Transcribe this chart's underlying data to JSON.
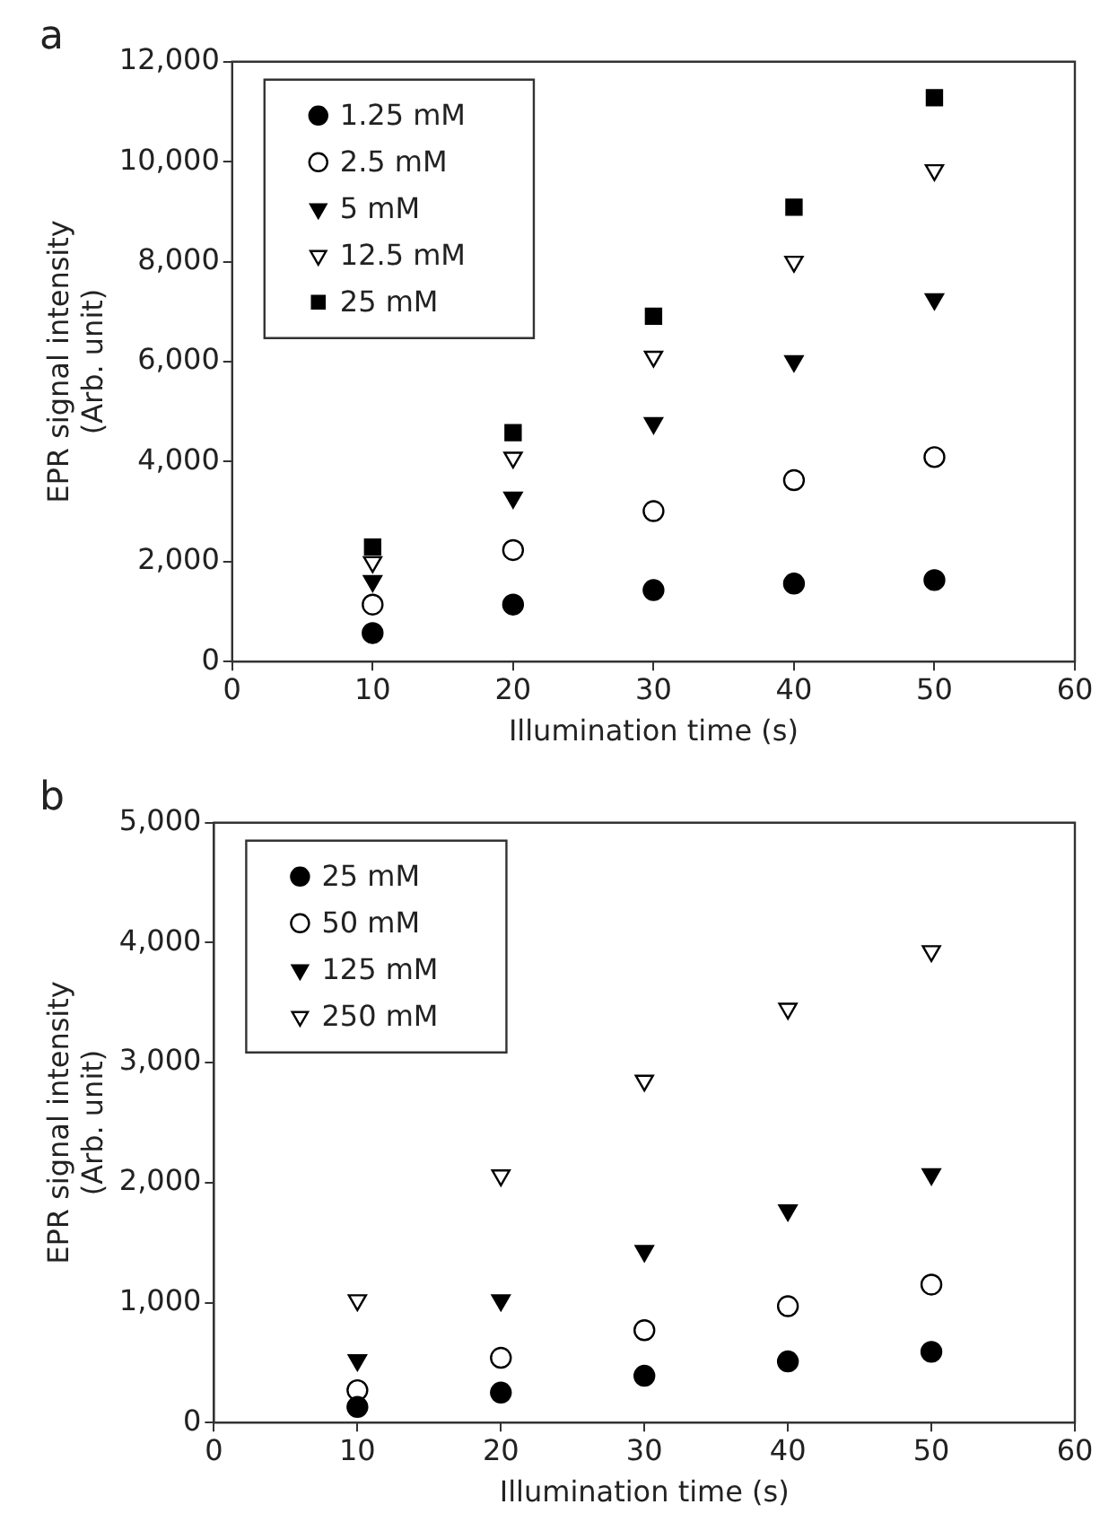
{
  "chart_data": [
    {
      "type": "scatter",
      "title": "a",
      "xlabel": "Illumination time (s)",
      "ylabel": "EPR signal intensity\n(Arb. unit)",
      "x": [
        10,
        20,
        30,
        40,
        50
      ],
      "series": [
        {
          "name": "1.25 mM",
          "color": "#000000",
          "marker": "circle",
          "values": [
            570,
            1140,
            1430,
            1560,
            1630
          ]
        },
        {
          "name": "2.5 mM",
          "color": "#000000",
          "marker": "circle_open",
          "values": [
            1140,
            2230,
            3010,
            3630,
            4090
          ]
        },
        {
          "name": "5 mM",
          "color": "#000000",
          "marker": "triangle_down",
          "values": [
            1610,
            3280,
            4770,
            6010,
            7250
          ]
        },
        {
          "name": "12.5 mM",
          "color": "#000000",
          "marker": "triangle_down_open",
          "values": [
            1990,
            4080,
            6100,
            8000,
            9830
          ]
        },
        {
          "name": "25 mM",
          "color": "#000000",
          "marker": "square",
          "values": [
            2290,
            4580,
            6910,
            9090,
            11280
          ]
        }
      ],
      "xlim": [
        0,
        60
      ],
      "xticks": [
        0,
        10,
        20,
        30,
        40,
        50,
        60
      ],
      "ylim": [
        0,
        12000
      ],
      "yticks": [
        0,
        {
          "value": 2000,
          "label": "2,000"
        },
        {
          "value": 4000,
          "label": "4,000"
        },
        {
          "value": 6000,
          "label": "6,000"
        },
        {
          "value": 8000,
          "label": "8,000"
        },
        {
          "value": 10000,
          "label": "10,000"
        },
        {
          "value": 12000,
          "label": "12,000"
        }
      ],
      "grid": false,
      "legend": "top left"
    },
    {
      "type": "scatter",
      "title": "b",
      "xlabel": "Illumination time (s)",
      "ylabel": "EPR signal intensity\n(Arb. unit)",
      "x": [
        10,
        20,
        30,
        40,
        50
      ],
      "series": [
        {
          "name": "25 mM",
          "color": "#000000",
          "marker": "circle",
          "values": [
            130,
            250,
            390,
            510,
            590
          ]
        },
        {
          "name": "50 mM",
          "color": "#000000",
          "marker": "circle_open",
          "values": [
            270,
            540,
            770,
            970,
            1150
          ]
        },
        {
          "name": "125 mM",
          "color": "#000000",
          "marker": "triangle_down",
          "values": [
            520,
            1020,
            1430,
            1770,
            2070
          ]
        },
        {
          "name": "250 mM",
          "color": "#000000",
          "marker": "triangle_down_open",
          "values": [
            1020,
            2060,
            2850,
            3450,
            3930
          ]
        }
      ],
      "xlim": [
        0,
        60
      ],
      "xticks": [
        0,
        10,
        20,
        30,
        40,
        50,
        60
      ],
      "ylim": [
        0,
        5000
      ],
      "yticks": [
        0,
        {
          "value": 1000,
          "label": "1,000"
        },
        {
          "value": 2000,
          "label": "2,000"
        },
        {
          "value": 3000,
          "label": "3,000"
        },
        {
          "value": 4000,
          "label": "4,000"
        },
        {
          "value": 5000,
          "label": "5,000"
        }
      ],
      "grid": false,
      "legend": "top left"
    }
  ]
}
